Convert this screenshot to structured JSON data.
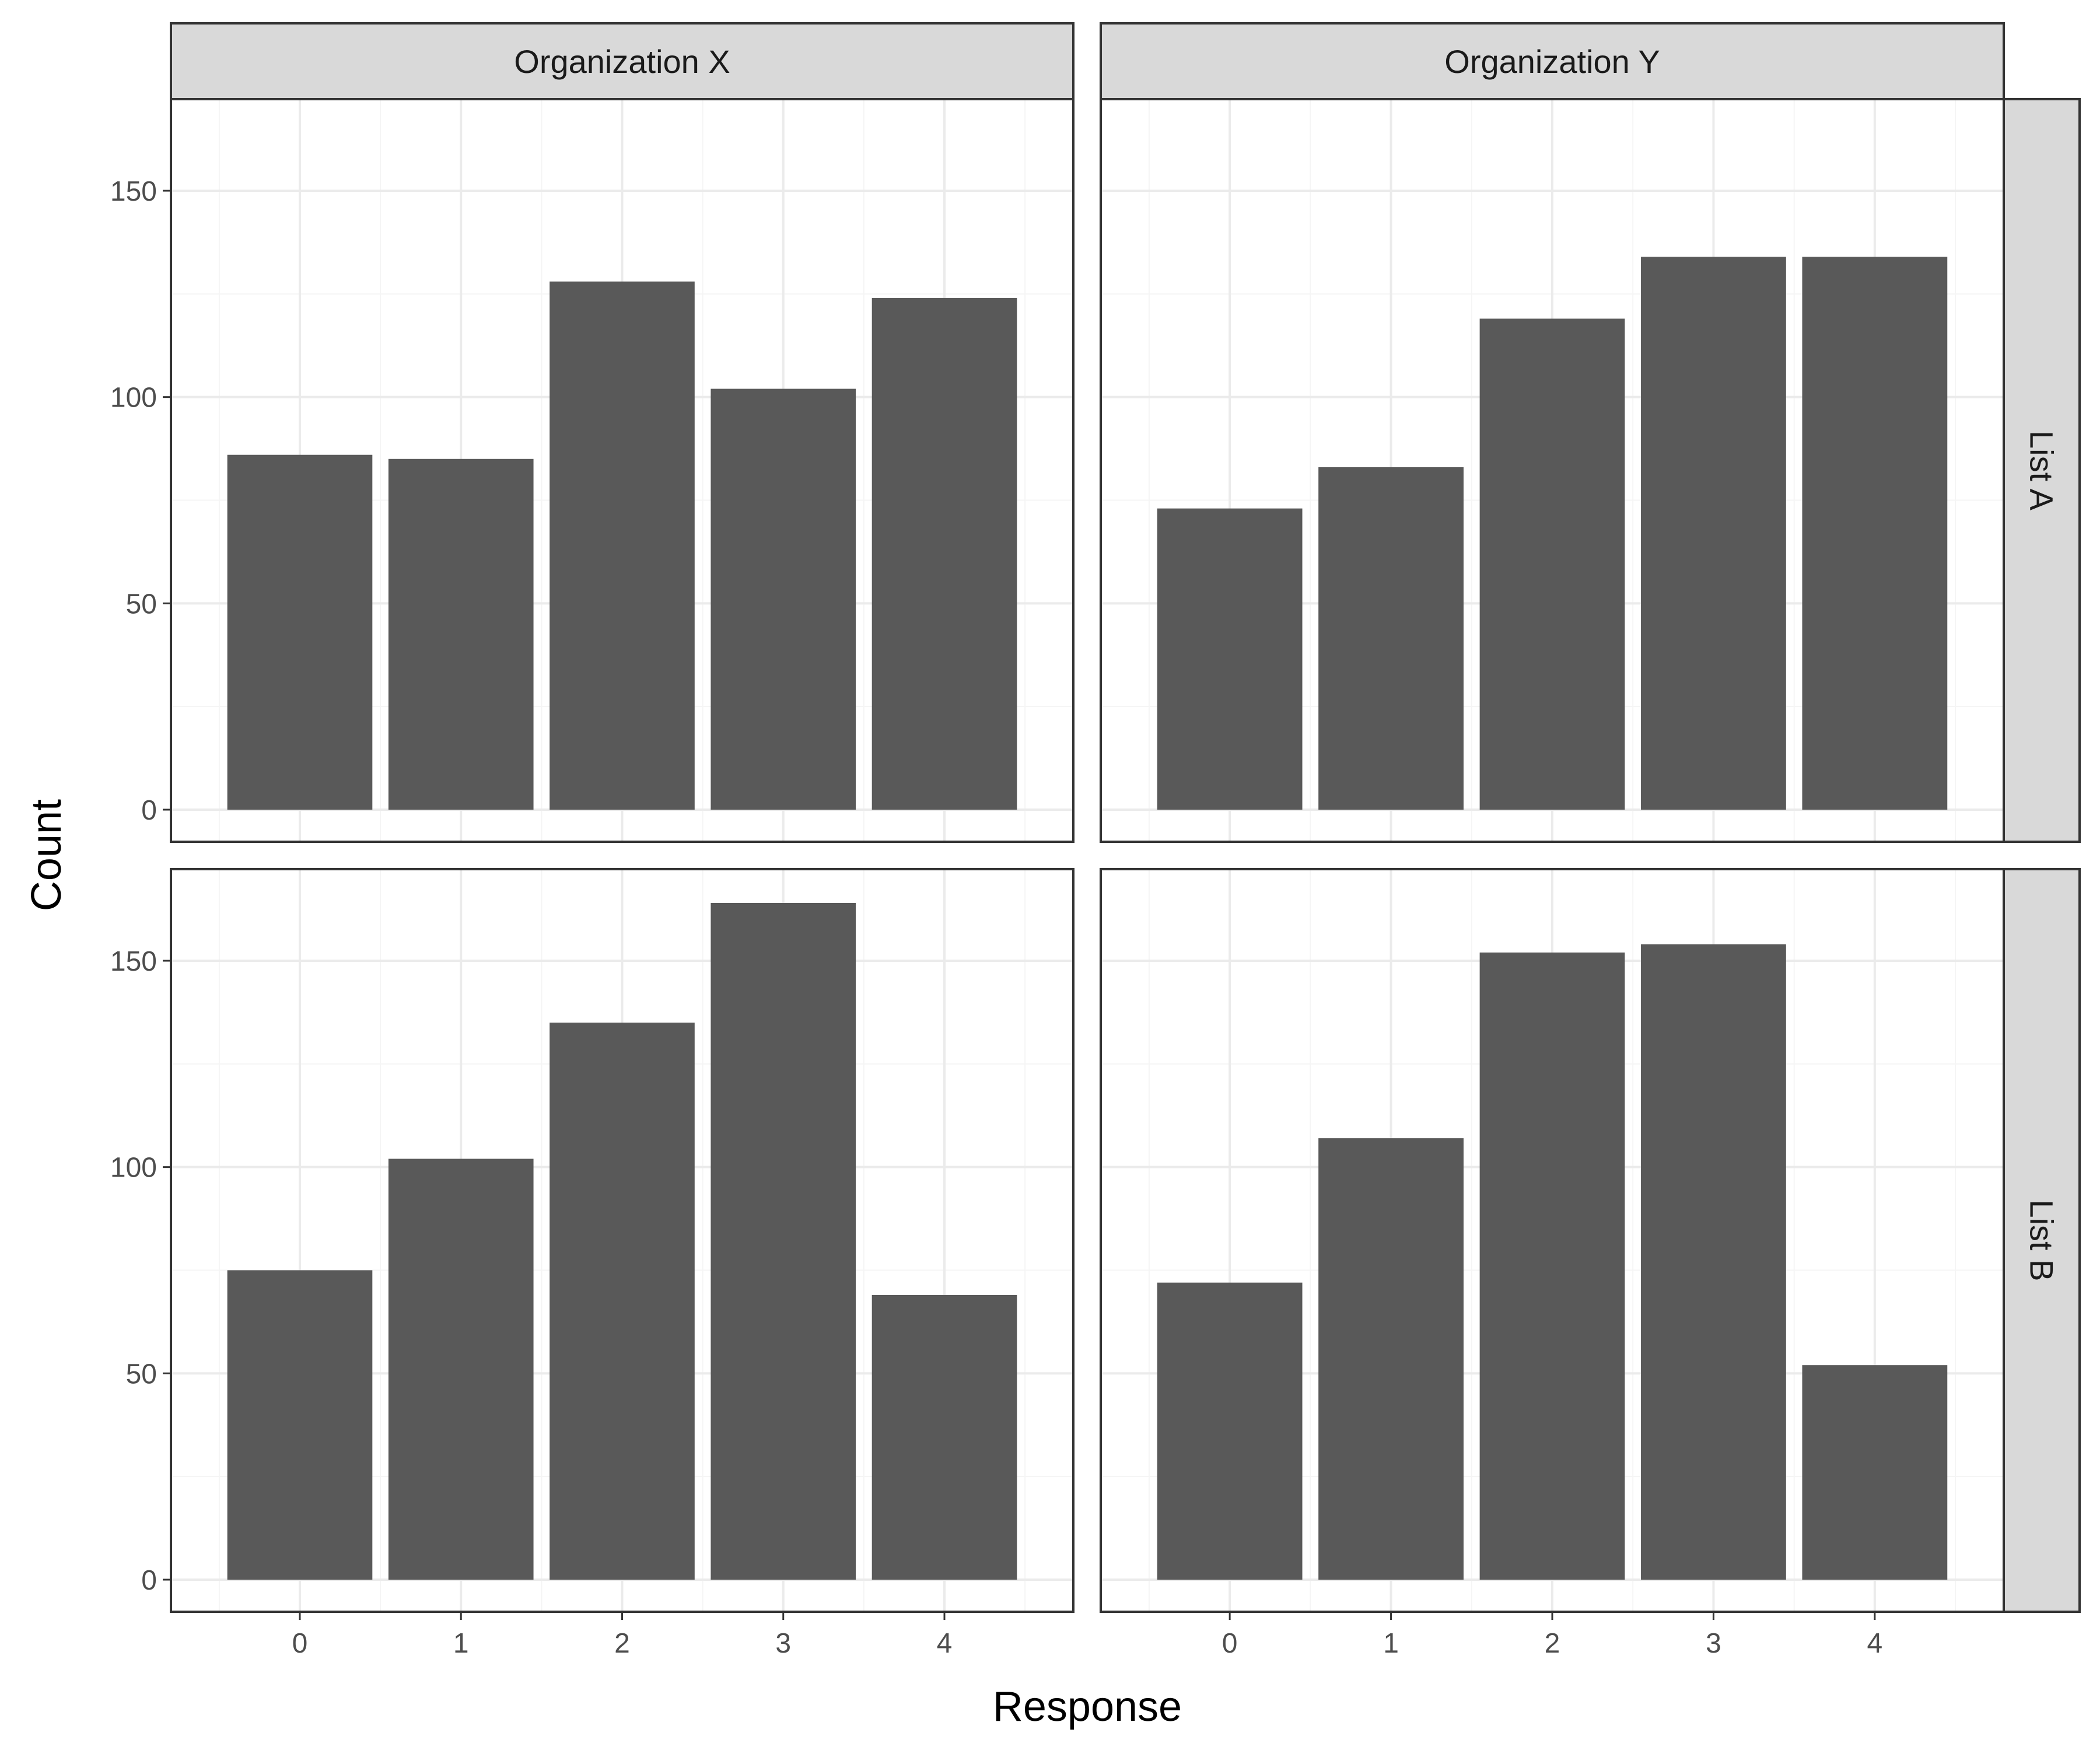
{
  "chart_data": {
    "type": "bar",
    "xlabel": "Response",
    "ylabel": "Count",
    "categories": [
      "0",
      "1",
      "2",
      "3",
      "4"
    ],
    "ylim": [
      0,
      170
    ],
    "y_ticks": [
      "0",
      "50",
      "100",
      "150"
    ],
    "grid": true,
    "facet_columns": [
      "Organization X",
      "Organization Y"
    ],
    "facet_rows": [
      "List A",
      "List B"
    ],
    "panels": [
      {
        "column": "Organization X",
        "row": "List A",
        "values": [
          86,
          85,
          128,
          102,
          124
        ]
      },
      {
        "column": "Organization Y",
        "row": "List A",
        "values": [
          73,
          83,
          119,
          134,
          134
        ]
      },
      {
        "column": "Organization X",
        "row": "List B",
        "values": [
          75,
          102,
          135,
          164,
          69
        ]
      },
      {
        "column": "Organization Y",
        "row": "List B",
        "values": [
          72,
          107,
          152,
          154,
          52
        ]
      }
    ],
    "colors": {
      "bar": "#595959",
      "strip": "#d9d9d9",
      "grid_major": "#ebebeb",
      "grid_minor": "#f5f5f5",
      "border": "#333333"
    }
  }
}
